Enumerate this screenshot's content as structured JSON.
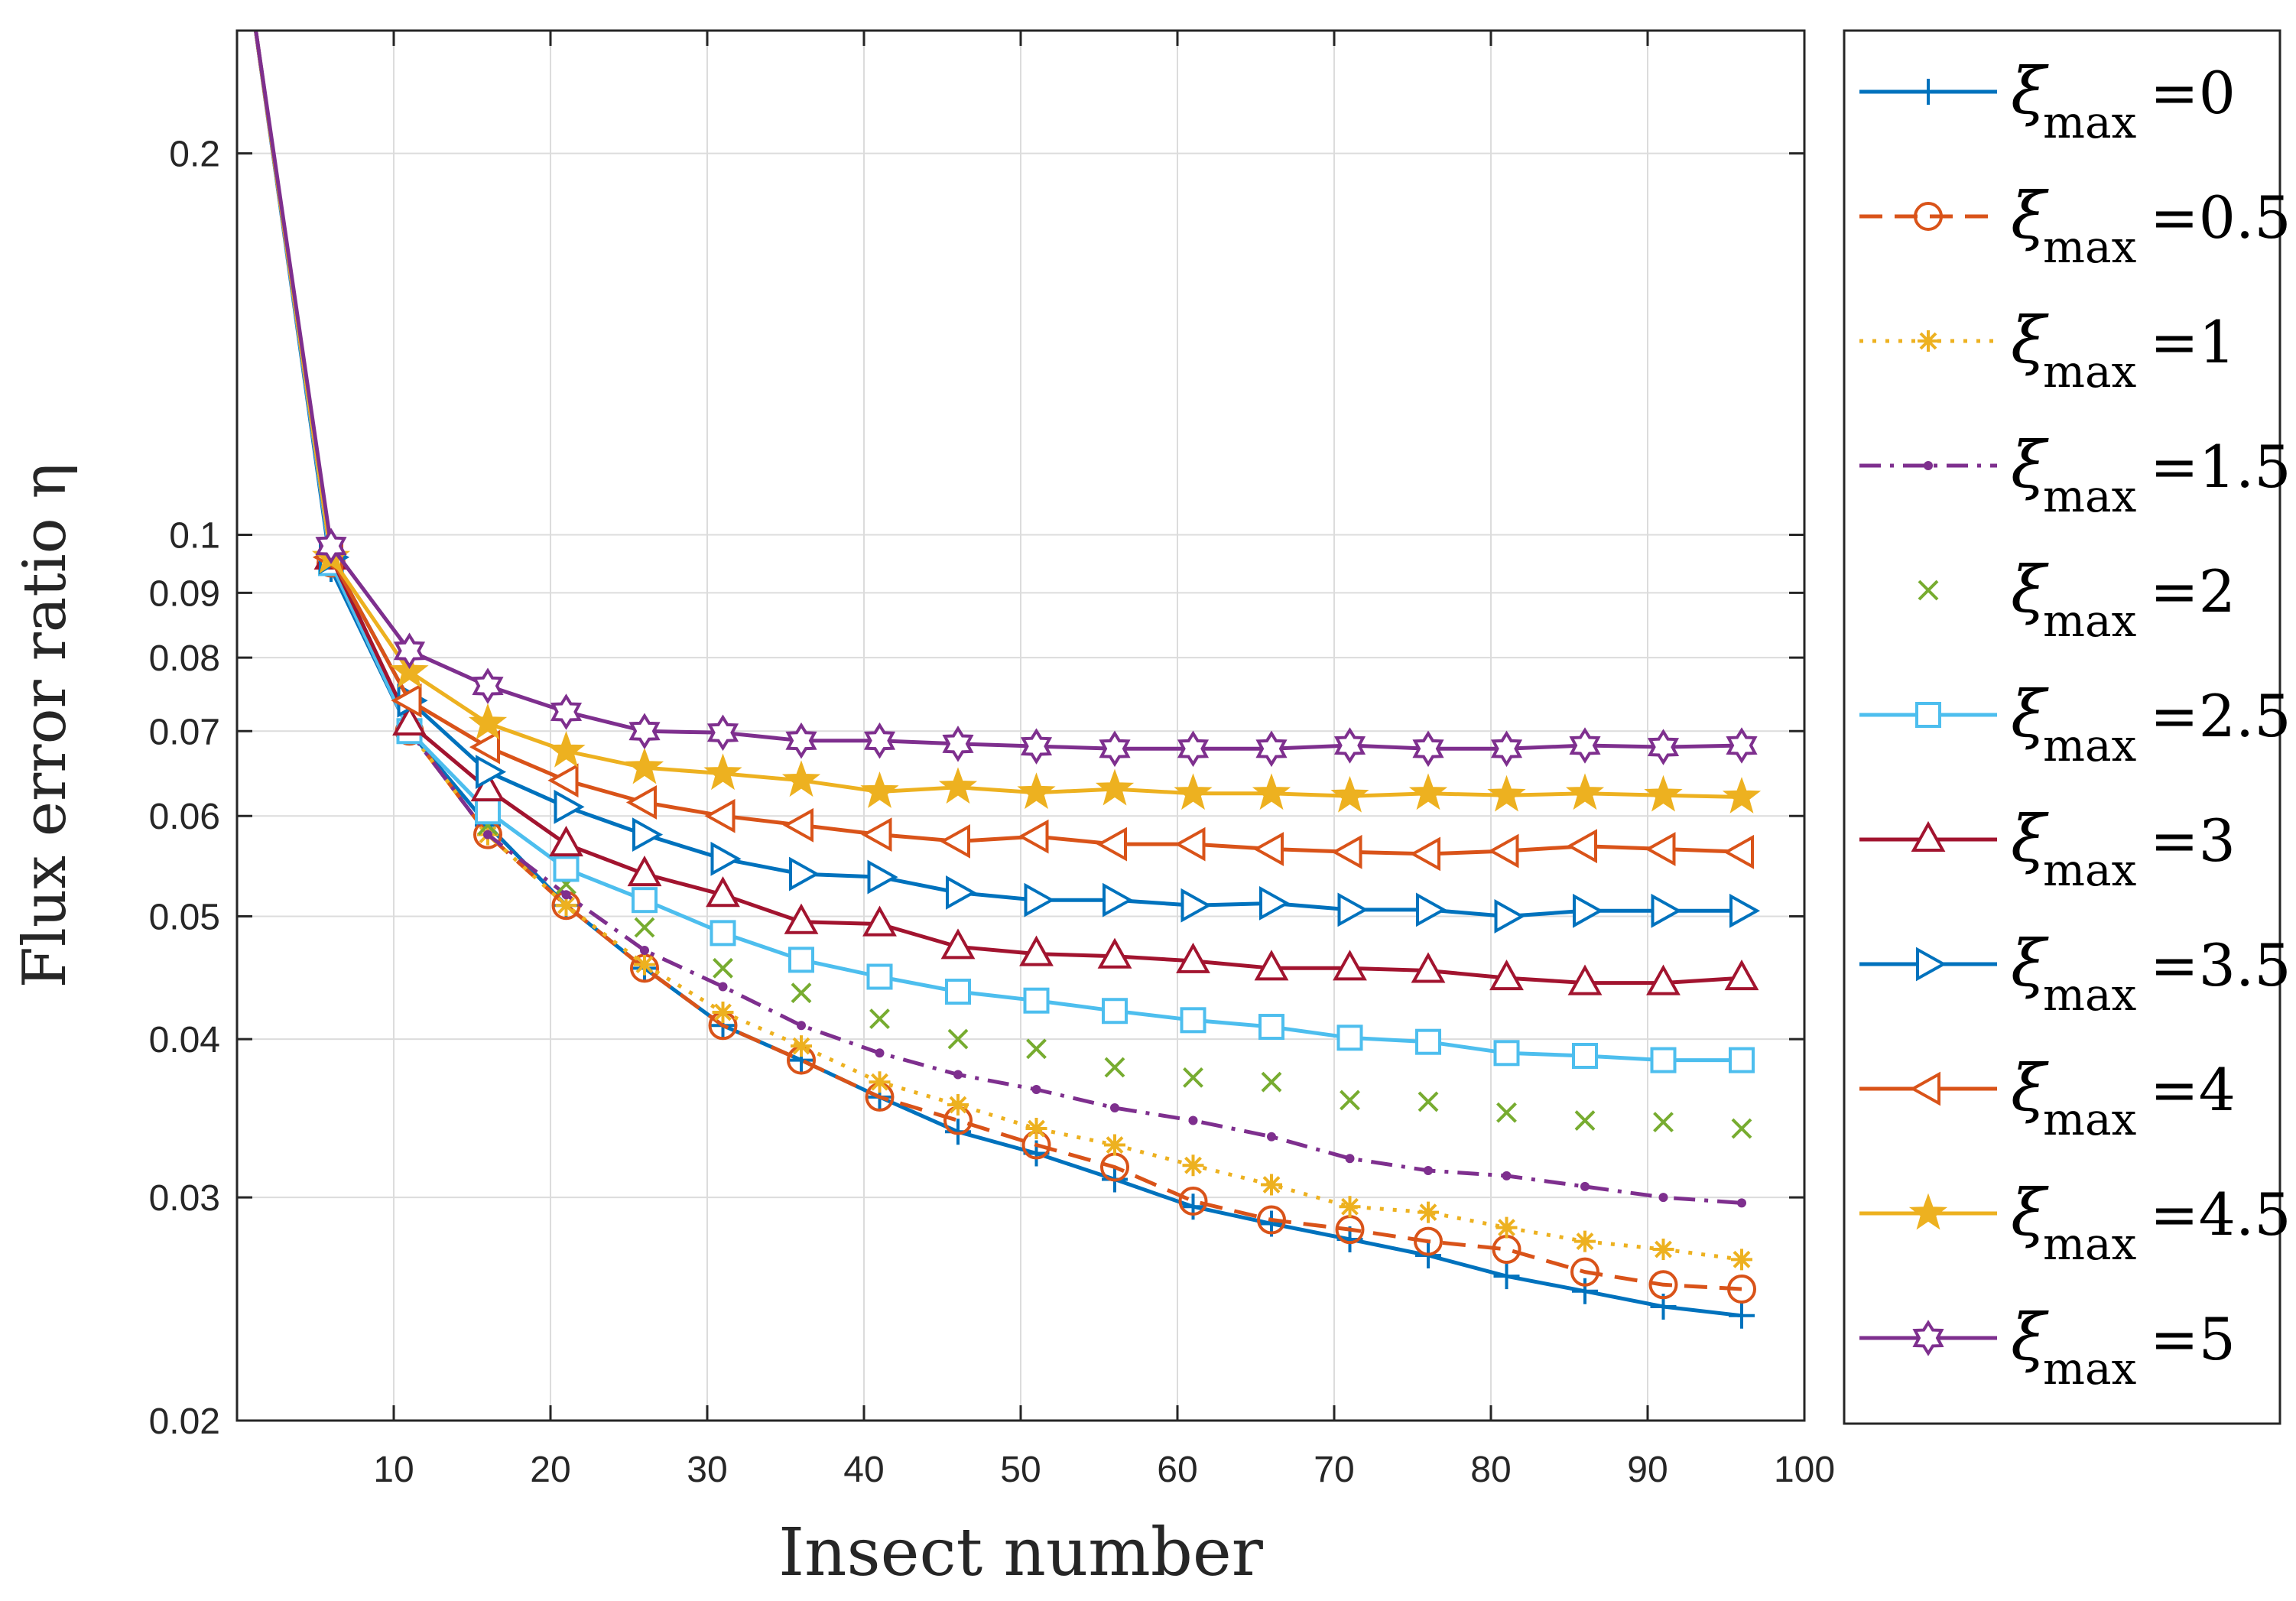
{
  "chart_data": {
    "type": "line",
    "title": "",
    "xlabel": "Insect number",
    "ylabel": "Flux error ratio η",
    "x_scale": "linear",
    "y_scale": "log",
    "xlim": [
      0,
      100
    ],
    "ylim": [
      0.02,
      0.25
    ],
    "grid": true,
    "legend_position": "outside-right",
    "x_ticks": [
      10,
      20,
      30,
      40,
      50,
      60,
      70,
      80,
      90,
      100
    ],
    "x_tick_labels": [
      "10",
      "20",
      "30",
      "40",
      "50",
      "60",
      "70",
      "80",
      "90",
      "100"
    ],
    "y_ticks": [
      0.02,
      0.03,
      0.04,
      0.05,
      0.06,
      0.07,
      0.08,
      0.09,
      0.1,
      0.2
    ],
    "y_tick_labels": [
      "0.02",
      "0.03",
      "0.04",
      "0.05",
      "0.06",
      "0.07",
      "0.08",
      "0.09",
      "0.1",
      "0.2"
    ],
    "x": [
      1,
      6,
      11,
      16,
      21,
      26,
      31,
      36,
      41,
      46,
      51,
      56,
      61,
      66,
      71,
      76,
      81,
      86,
      91,
      96
    ],
    "legend_prefix": "ξ",
    "legend_subscript": "max",
    "series": [
      {
        "name": "ξmax=0",
        "value_label": "=0",
        "color": "#0072BD",
        "line": "solid",
        "marker": "plus",
        "values": [
          0.26,
          0.094,
          0.07,
          0.059,
          0.051,
          0.0455,
          0.041,
          0.0385,
          0.036,
          0.0338,
          0.0325,
          0.031,
          0.0295,
          0.0286,
          0.0278,
          0.027,
          0.026,
          0.0253,
          0.0246,
          0.0242
        ]
      },
      {
        "name": "ξmax=0.5",
        "value_label": "=0.5",
        "color": "#D95319",
        "line": "dashed",
        "marker": "circle",
        "values": [
          0.26,
          0.095,
          0.07,
          0.058,
          0.051,
          0.0455,
          0.041,
          0.0385,
          0.036,
          0.0345,
          0.033,
          0.0317,
          0.0298,
          0.0288,
          0.0283,
          0.0277,
          0.0273,
          0.0262,
          0.0256,
          0.0254
        ]
      },
      {
        "name": "ξmax=1",
        "value_label": "=1",
        "color": "#EDB120",
        "line": "dotted",
        "marker": "asterisk",
        "values": [
          0.26,
          0.095,
          0.07,
          0.058,
          0.051,
          0.0458,
          0.042,
          0.0395,
          0.037,
          0.0355,
          0.034,
          0.033,
          0.0318,
          0.0307,
          0.0295,
          0.0292,
          0.0284,
          0.0277,
          0.0273,
          0.0268
        ]
      },
      {
        "name": "ξmax=1.5",
        "value_label": "=1.5",
        "color": "#7E2F8E",
        "line": "dashdot",
        "marker": "dot",
        "values": [
          0.26,
          0.095,
          0.07,
          0.058,
          0.052,
          0.047,
          0.044,
          0.041,
          0.039,
          0.0375,
          0.0365,
          0.0353,
          0.0345,
          0.0335,
          0.0322,
          0.0315,
          0.0312,
          0.0306,
          0.03,
          0.0297
        ]
      },
      {
        "name": "ξmax=2",
        "value_label": "=2",
        "color": "#77AC30",
        "line": "none",
        "marker": "x",
        "values": [
          0.26,
          0.095,
          0.07,
          0.059,
          0.053,
          0.049,
          0.0455,
          0.0435,
          0.0415,
          0.04,
          0.0393,
          0.038,
          0.0373,
          0.037,
          0.0358,
          0.0357,
          0.035,
          0.0345,
          0.0344,
          0.034
        ]
      },
      {
        "name": "ξmax=2.5",
        "value_label": "=2.5",
        "color": "#4DBEEE",
        "line": "solid",
        "marker": "square",
        "values": [
          0.26,
          0.095,
          0.07,
          0.0605,
          0.0545,
          0.0515,
          0.0485,
          0.0462,
          0.0448,
          0.0436,
          0.0429,
          0.0421,
          0.0414,
          0.0409,
          0.0401,
          0.0398,
          0.039,
          0.0388,
          0.0385,
          0.0385
        ]
      },
      {
        "name": "ξmax=3",
        "value_label": "=3",
        "color": "#A2142F",
        "line": "solid",
        "marker": "triangle-up",
        "values": [
          0.26,
          0.096,
          0.071,
          0.063,
          0.057,
          0.054,
          0.052,
          0.0495,
          0.0493,
          0.0473,
          0.0467,
          0.0465,
          0.0461,
          0.0455,
          0.0455,
          0.0453,
          0.0447,
          0.0443,
          0.0443,
          0.0447
        ]
      },
      {
        "name": "ξmax=3.5",
        "value_label": "=3.5",
        "color": "#0072BD",
        "line": "solid",
        "marker": "triangle-right",
        "values": [
          0.26,
          0.096,
          0.074,
          0.065,
          0.061,
          0.058,
          0.0555,
          0.054,
          0.0537,
          0.0522,
          0.0515,
          0.0515,
          0.051,
          0.0512,
          0.0506,
          0.0506,
          0.05,
          0.0505,
          0.0505,
          0.0505
        ]
      },
      {
        "name": "ξmax=4",
        "value_label": "=4",
        "color": "#D95319",
        "line": "solid",
        "marker": "triangle-left",
        "values": [
          0.26,
          0.096,
          0.074,
          0.068,
          0.064,
          0.0615,
          0.06,
          0.059,
          0.058,
          0.0573,
          0.0578,
          0.057,
          0.057,
          0.0565,
          0.0562,
          0.056,
          0.0563,
          0.0568,
          0.0565,
          0.0562
        ]
      },
      {
        "name": "ξmax=4.5",
        "value_label": "=4.5",
        "color": "#EDB120",
        "line": "solid",
        "marker": "pentagram",
        "values": [
          0.26,
          0.096,
          0.078,
          0.071,
          0.0675,
          0.0655,
          0.0648,
          0.064,
          0.0627,
          0.0632,
          0.0626,
          0.063,
          0.0625,
          0.0625,
          0.0622,
          0.0625,
          0.0623,
          0.0625,
          0.0623,
          0.0621
        ]
      },
      {
        "name": "ξmax=5",
        "value_label": "=5",
        "color": "#7E2F8E",
        "line": "solid",
        "marker": "hexagram",
        "values": [
          0.26,
          0.098,
          0.081,
          0.076,
          0.0725,
          0.07,
          0.0698,
          0.0688,
          0.0688,
          0.0684,
          0.0681,
          0.0678,
          0.0678,
          0.0678,
          0.0682,
          0.0678,
          0.0678,
          0.0682,
          0.068,
          0.0682
        ]
      }
    ]
  }
}
